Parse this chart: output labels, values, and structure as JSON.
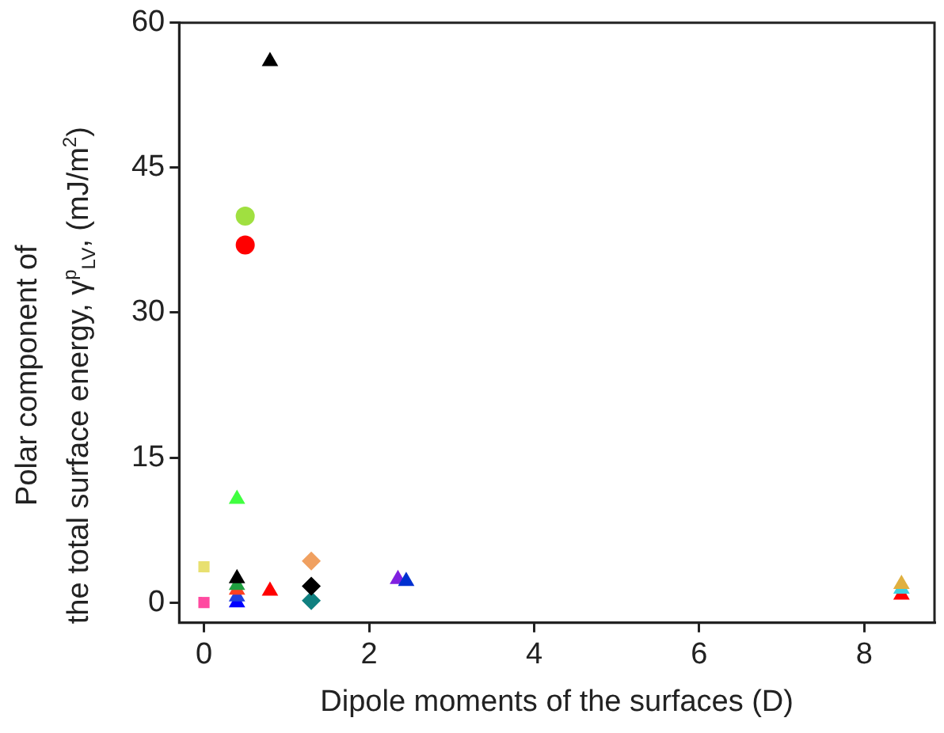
{
  "chart_data": {
    "type": "scatter",
    "xlabel": "Dipole moments of the surfaces (D)",
    "ylabel": "Polar component of\nthe total surface energy, γ$^{p}$$_{LV}$, (mJ/m$^{2}$)",
    "xlim": [
      -0.3,
      8.85
    ],
    "xticks": [
      0,
      2,
      4,
      6,
      8
    ],
    "ylim": [
      -2.1,
      60
    ],
    "yticks": [
      0,
      15,
      30,
      45,
      60
    ],
    "grid": false,
    "legend": false,
    "series": [
      {
        "x": [
          0.8
        ],
        "values": [
          56
        ],
        "color": "#000000",
        "marker": "triangle"
      },
      {
        "x": [
          0.5
        ],
        "values": [
          40
        ],
        "color": "#a0e040",
        "marker": "circle"
      },
      {
        "x": [
          0.5
        ],
        "values": [
          37
        ],
        "color": "#ff0000",
        "marker": "circle"
      },
      {
        "x": [
          0.4
        ],
        "values": [
          10.7
        ],
        "color": "#40ff40",
        "marker": "triangle"
      },
      {
        "x": [
          0
        ],
        "values": [
          3.7
        ],
        "color": "#e8e070",
        "marker": "square"
      },
      {
        "x": [
          0
        ],
        "values": [
          0
        ],
        "color": "#ff4aa0",
        "marker": "square"
      },
      {
        "x": [
          0.4
        ],
        "values": [
          2.5
        ],
        "color": "#000000",
        "marker": "triangle"
      },
      {
        "x": [
          0.4
        ],
        "values": [
          1.8
        ],
        "color": "#20a040",
        "marker": "triangle"
      },
      {
        "x": [
          0.4
        ],
        "values": [
          1.3
        ],
        "color": "#ff4020",
        "marker": "triangle"
      },
      {
        "x": [
          0.4
        ],
        "values": [
          0.6
        ],
        "color": "#2040e0",
        "marker": "triangle"
      },
      {
        "x": [
          0.4
        ],
        "values": [
          0
        ],
        "color": "#0000ff",
        "marker": "triangle"
      },
      {
        "x": [
          0.8
        ],
        "values": [
          1.2
        ],
        "color": "#ff0000",
        "marker": "triangle"
      },
      {
        "x": [
          1.3
        ],
        "values": [
          4.3
        ],
        "color": "#f0a060",
        "marker": "diamond"
      },
      {
        "x": [
          1.3
        ],
        "values": [
          1.7
        ],
        "color": "#000000",
        "marker": "diamond"
      },
      {
        "x": [
          1.3
        ],
        "values": [
          0.2
        ],
        "color": "#108080",
        "marker": "diamond"
      },
      {
        "x": [
          2.45
        ],
        "values": [
          2.2
        ],
        "color": "#0030d0",
        "marker": "triangle"
      },
      {
        "x": [
          2.35
        ],
        "values": [
          2.4
        ],
        "color": "#8020e0",
        "marker": "triangle"
      },
      {
        "x": [
          8.45
        ],
        "values": [
          1.9
        ],
        "color": "#e0b040",
        "marker": "triangle"
      },
      {
        "x": [
          8.45
        ],
        "values": [
          1.4
        ],
        "color": "#40d0e0",
        "marker": "triangle"
      },
      {
        "x": [
          8.45
        ],
        "values": [
          0.8
        ],
        "color": "#ff0000",
        "marker": "triangle"
      }
    ]
  }
}
